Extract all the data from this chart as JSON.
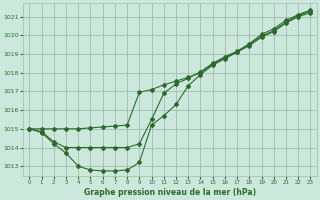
{
  "title": "Graphe pression niveau de la mer (hPa)",
  "bg_color": "#cce8dd",
  "grid_color": "#9dbdad",
  "line_color": "#2d6a2d",
  "xlim": [
    -0.5,
    23.5
  ],
  "ylim": [
    1012.5,
    1021.7
  ],
  "yticks": [
    1013,
    1014,
    1015,
    1016,
    1017,
    1018,
    1019,
    1020,
    1021
  ],
  "xticks": [
    0,
    1,
    2,
    3,
    4,
    5,
    6,
    7,
    8,
    9,
    10,
    11,
    12,
    13,
    14,
    15,
    16,
    17,
    18,
    19,
    20,
    21,
    22,
    23
  ],
  "series1_x": [
    0,
    1,
    2,
    3,
    4,
    5,
    6,
    7,
    8,
    9,
    10,
    11,
    12,
    13,
    14,
    15,
    16,
    17,
    18,
    19,
    20,
    21,
    22,
    23
  ],
  "series1_y": [
    1015.0,
    1014.8,
    1014.2,
    1013.7,
    1013.0,
    1012.8,
    1012.75,
    1012.75,
    1012.8,
    1013.2,
    1015.2,
    1015.7,
    1016.3,
    1017.3,
    1017.9,
    1018.4,
    1018.75,
    1019.1,
    1019.45,
    1019.9,
    1020.2,
    1020.65,
    1021.0,
    1021.2
  ],
  "series2_x": [
    0,
    1,
    2,
    3,
    4,
    5,
    6,
    7,
    8,
    9,
    10,
    11,
    12,
    13,
    14,
    15,
    16,
    17,
    18,
    19,
    20,
    21,
    22,
    23
  ],
  "series2_y": [
    1015.0,
    1014.85,
    1014.3,
    1014.0,
    1014.0,
    1014.0,
    1014.0,
    1014.0,
    1014.0,
    1014.2,
    1015.5,
    1016.9,
    1017.4,
    1017.7,
    1018.05,
    1018.5,
    1018.85,
    1019.15,
    1019.55,
    1020.05,
    1020.35,
    1020.8,
    1021.1,
    1021.35
  ],
  "series3_x": [
    0,
    1,
    2,
    3,
    4,
    5,
    6,
    7,
    8,
    9,
    10,
    11,
    12,
    13,
    14,
    15,
    16,
    17,
    18,
    19,
    20,
    21,
    22,
    23
  ],
  "series3_y": [
    1015.0,
    1015.0,
    1015.0,
    1015.0,
    1015.0,
    1015.05,
    1015.1,
    1015.15,
    1015.2,
    1016.95,
    1017.1,
    1017.35,
    1017.55,
    1017.75,
    1018.0,
    1018.45,
    1018.8,
    1019.1,
    1019.5,
    1019.95,
    1020.25,
    1020.7,
    1021.05,
    1021.3
  ]
}
